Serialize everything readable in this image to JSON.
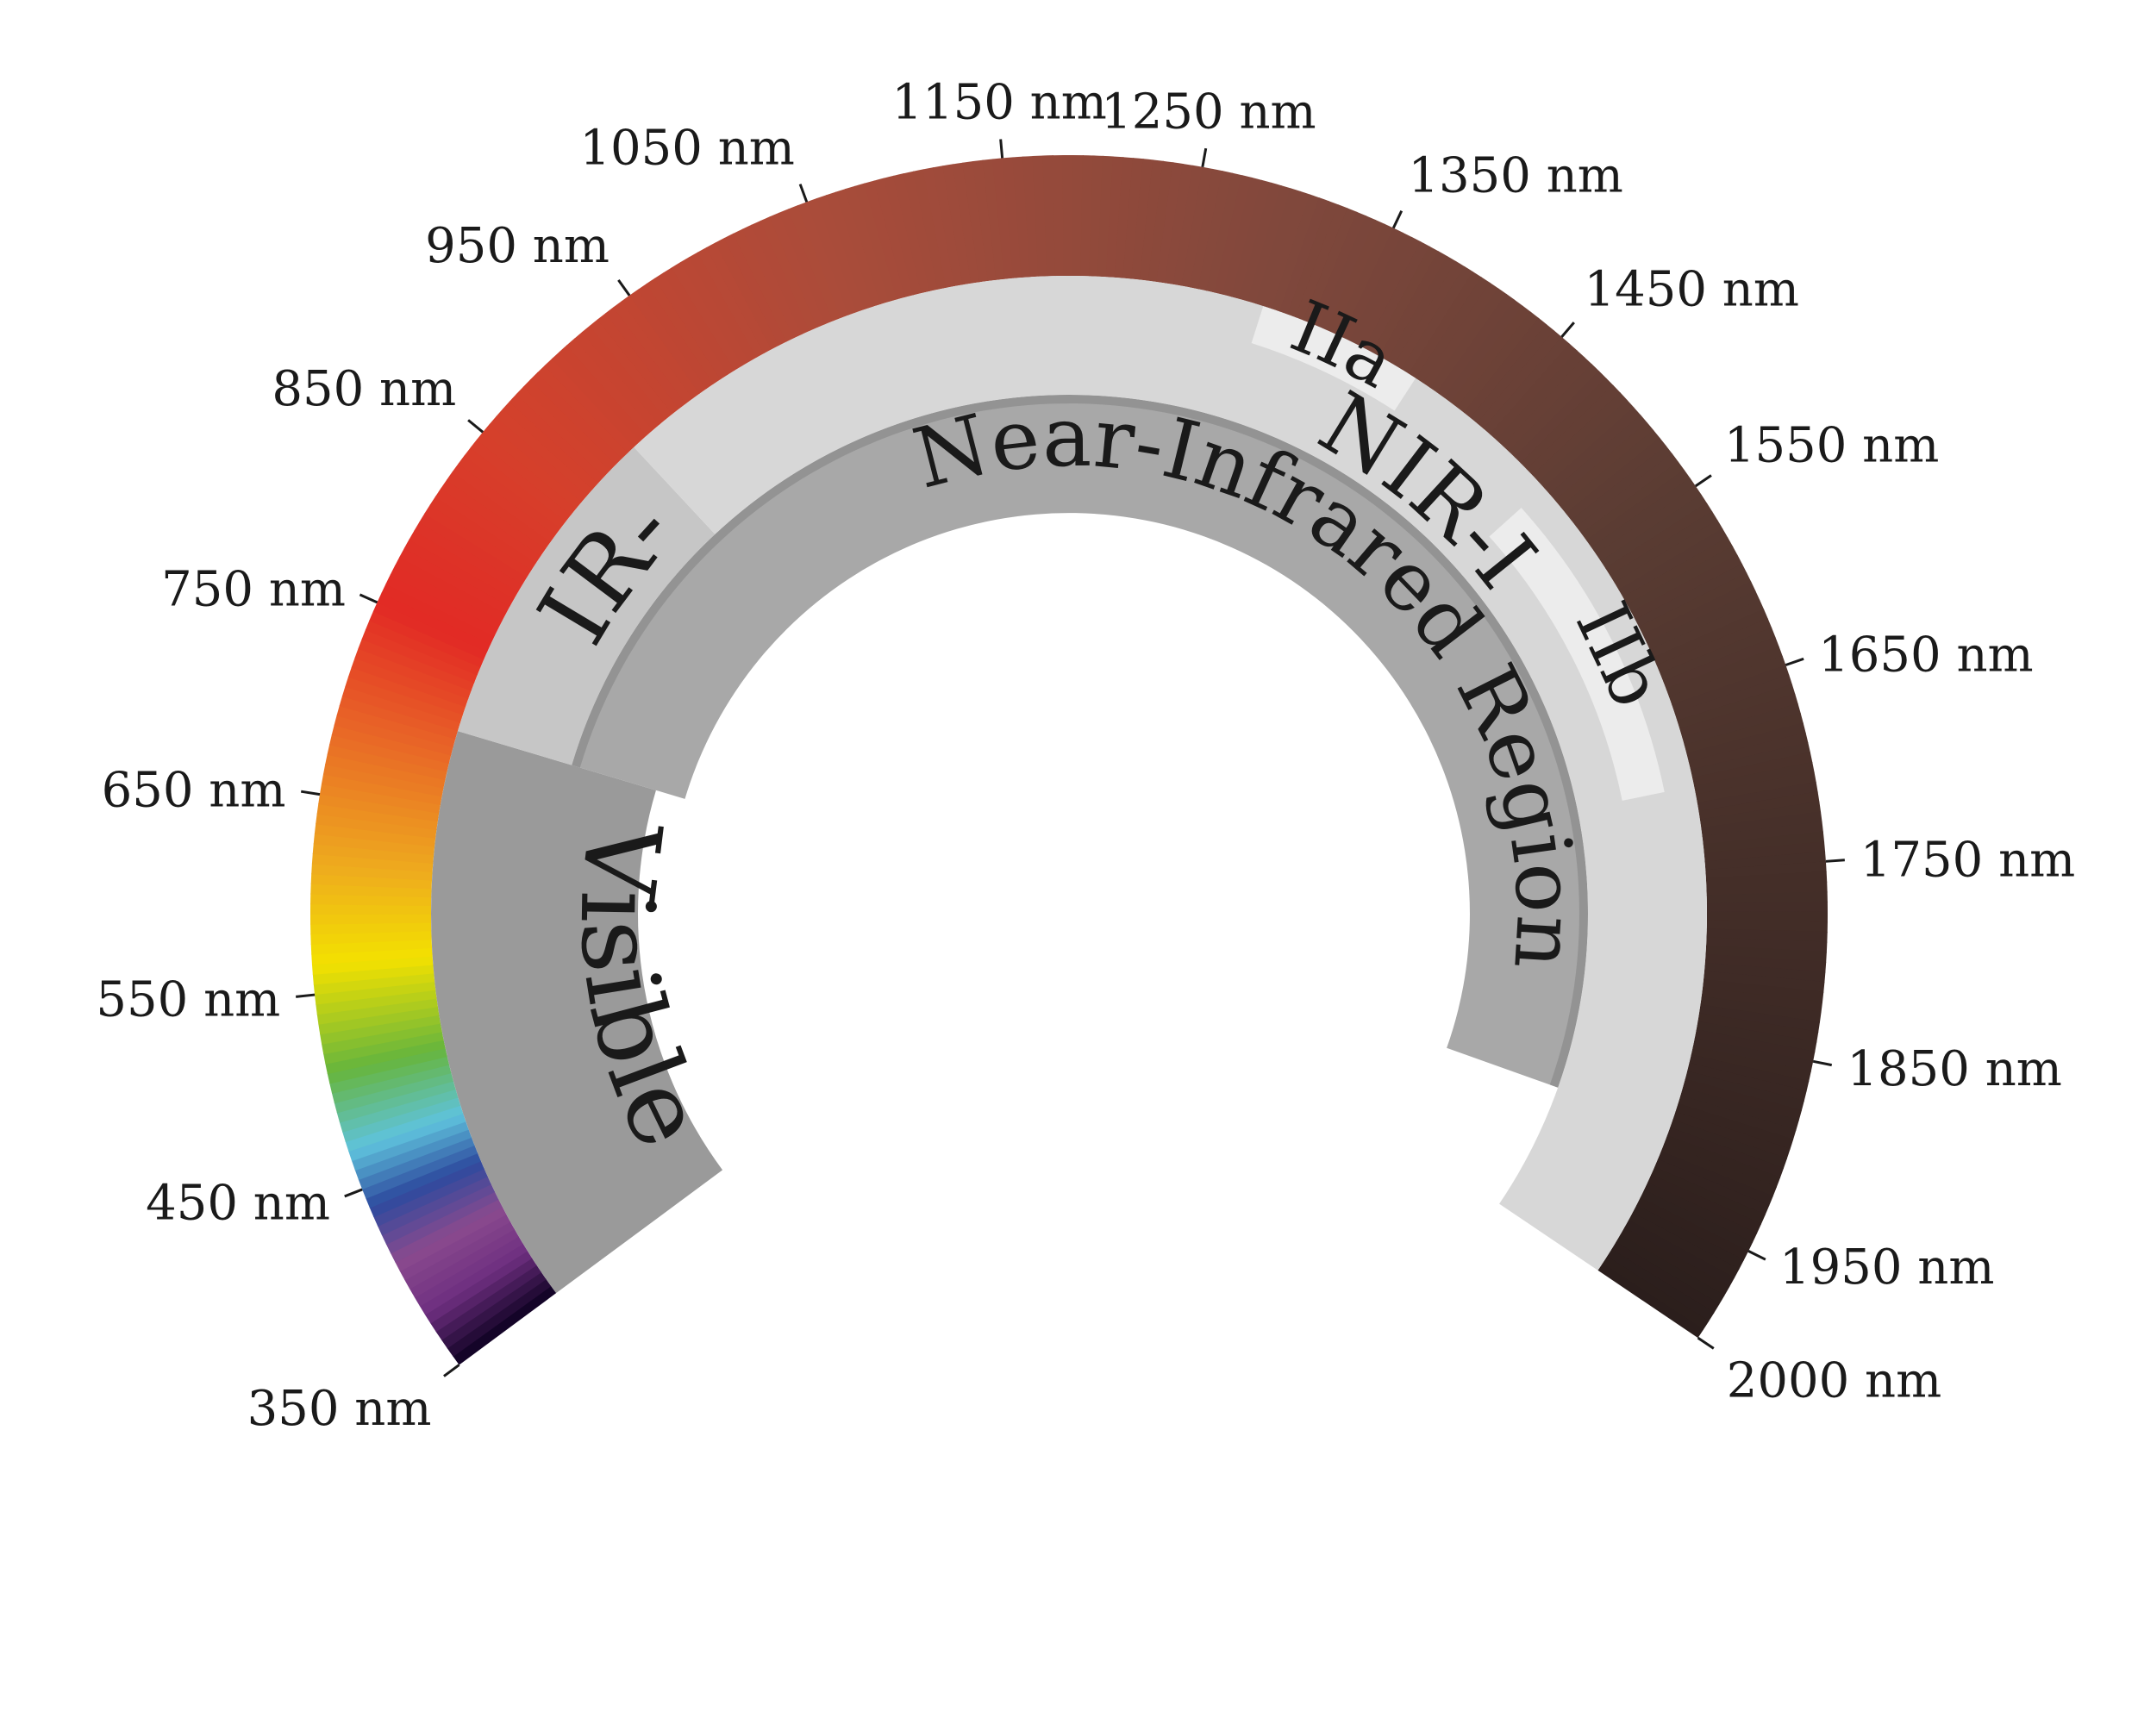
{
  "diagram": {
    "wavelength_range_nm": [
      350,
      2000
    ],
    "spectrum_colors": [
      {
        "nm": 350,
        "color": "#0c0020"
      },
      {
        "nm": 380,
        "color": "#6e2f80"
      },
      {
        "nm": 410,
        "color": "#8a4a8e"
      },
      {
        "nm": 440,
        "color": "#2d4a9e"
      },
      {
        "nm": 470,
        "color": "#5fc3dd"
      },
      {
        "nm": 510,
        "color": "#66b53d"
      },
      {
        "nm": 565,
        "color": "#f3e100"
      },
      {
        "nm": 615,
        "color": "#eeaa1e"
      },
      {
        "nm": 690,
        "color": "#e86227"
      },
      {
        "nm": 750,
        "color": "#e22a25"
      },
      {
        "nm": 850,
        "color": "#d6402b"
      },
      {
        "nm": 1050,
        "color": "#aa4c3a"
      },
      {
        "nm": 1300,
        "color": "#80483c"
      },
      {
        "nm": 1550,
        "color": "#5a3c33"
      },
      {
        "nm": 2000,
        "color": "#2b1e1c"
      }
    ],
    "ticks": [
      {
        "nm": 350,
        "label": "350 nm"
      },
      {
        "nm": 450,
        "label": "450 nm"
      },
      {
        "nm": 550,
        "label": "550 nm"
      },
      {
        "nm": 650,
        "label": "650 nm"
      },
      {
        "nm": 750,
        "label": "750 nm"
      },
      {
        "nm": 850,
        "label": "850 nm"
      },
      {
        "nm": 950,
        "label": "950 nm"
      },
      {
        "nm": 1050,
        "label": "1050 nm"
      },
      {
        "nm": 1150,
        "label": "1150 nm"
      },
      {
        "nm": 1250,
        "label": "1250 nm"
      },
      {
        "nm": 1350,
        "label": "1350 nm"
      },
      {
        "nm": 1450,
        "label": "1450 nm"
      },
      {
        "nm": 1550,
        "label": "1550 nm"
      },
      {
        "nm": 1650,
        "label": "1650 nm"
      },
      {
        "nm": 1750,
        "label": "1750 nm"
      },
      {
        "nm": 1850,
        "label": "1850 nm"
      },
      {
        "nm": 1950,
        "label": "1950 nm"
      },
      {
        "nm": 2000,
        "label": "2000 nm"
      }
    ],
    "regions": {
      "visible": {
        "label": "Visible",
        "range_nm": [
          350,
          700
        ],
        "color": "#9a9a9a"
      },
      "near_infrared": {
        "label": "Near-Infrared Region",
        "range_nm": [
          700,
          2000
        ],
        "color": "#a8a8a8",
        "edge_color": "#939393"
      },
      "nir_i": {
        "label": "NIR-I",
        "range_nm": [
          700,
          900
        ],
        "color": "#c6c6c6"
      },
      "nir_ii": {
        "label": "NIR-II",
        "range_nm": [
          900,
          2000
        ],
        "color": "#d7d7d7"
      },
      "iia": {
        "label": "IIa",
        "range_nm": [
          1300,
          1400
        ],
        "color": "#ececec"
      },
      "iib": {
        "label": "IIb",
        "range_nm": [
          1500,
          1700
        ],
        "color": "#ececec"
      }
    }
  }
}
